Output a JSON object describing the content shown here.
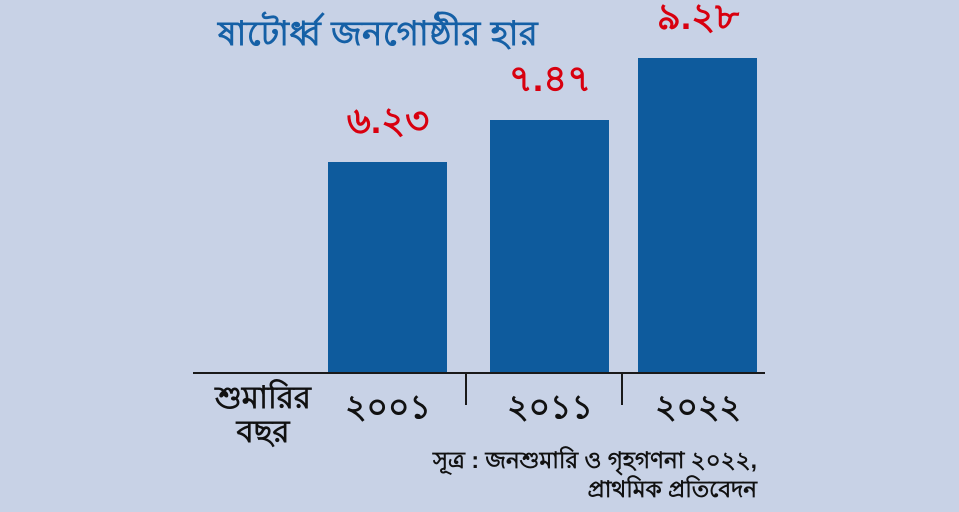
{
  "title": "ষাটোর্ধ্ব জনগোষ্ঠীর হার",
  "chart_data": {
    "type": "bar",
    "categories": [
      "২০০১",
      "২০১১",
      "২০২২"
    ],
    "values": [
      6.23,
      7.47,
      9.28
    ],
    "value_labels": [
      "৬.২৩",
      "৭.৪৭",
      "৯.২৮"
    ],
    "title": "ষাটোর্ধ্ব জনগোষ্ঠীর হার",
    "xlabel": "শুমারির বছর",
    "ylabel": "",
    "ylim": [
      0,
      10
    ],
    "grid": false,
    "legend": false,
    "bar_color": "#0e5b9d",
    "value_label_color": "#d8000f",
    "title_color": "#1560a6",
    "axis_color": "#1a1a1a",
    "background_color": "#c8d2e6"
  },
  "axis_caption": {
    "line1": "শুমারির",
    "line2": "বছর"
  },
  "source": {
    "line1": "সূত্র : জনশুমারি ও গৃহগণনা ২০২২,",
    "line2": "প্রাথমিক প্রতিবেদন"
  }
}
